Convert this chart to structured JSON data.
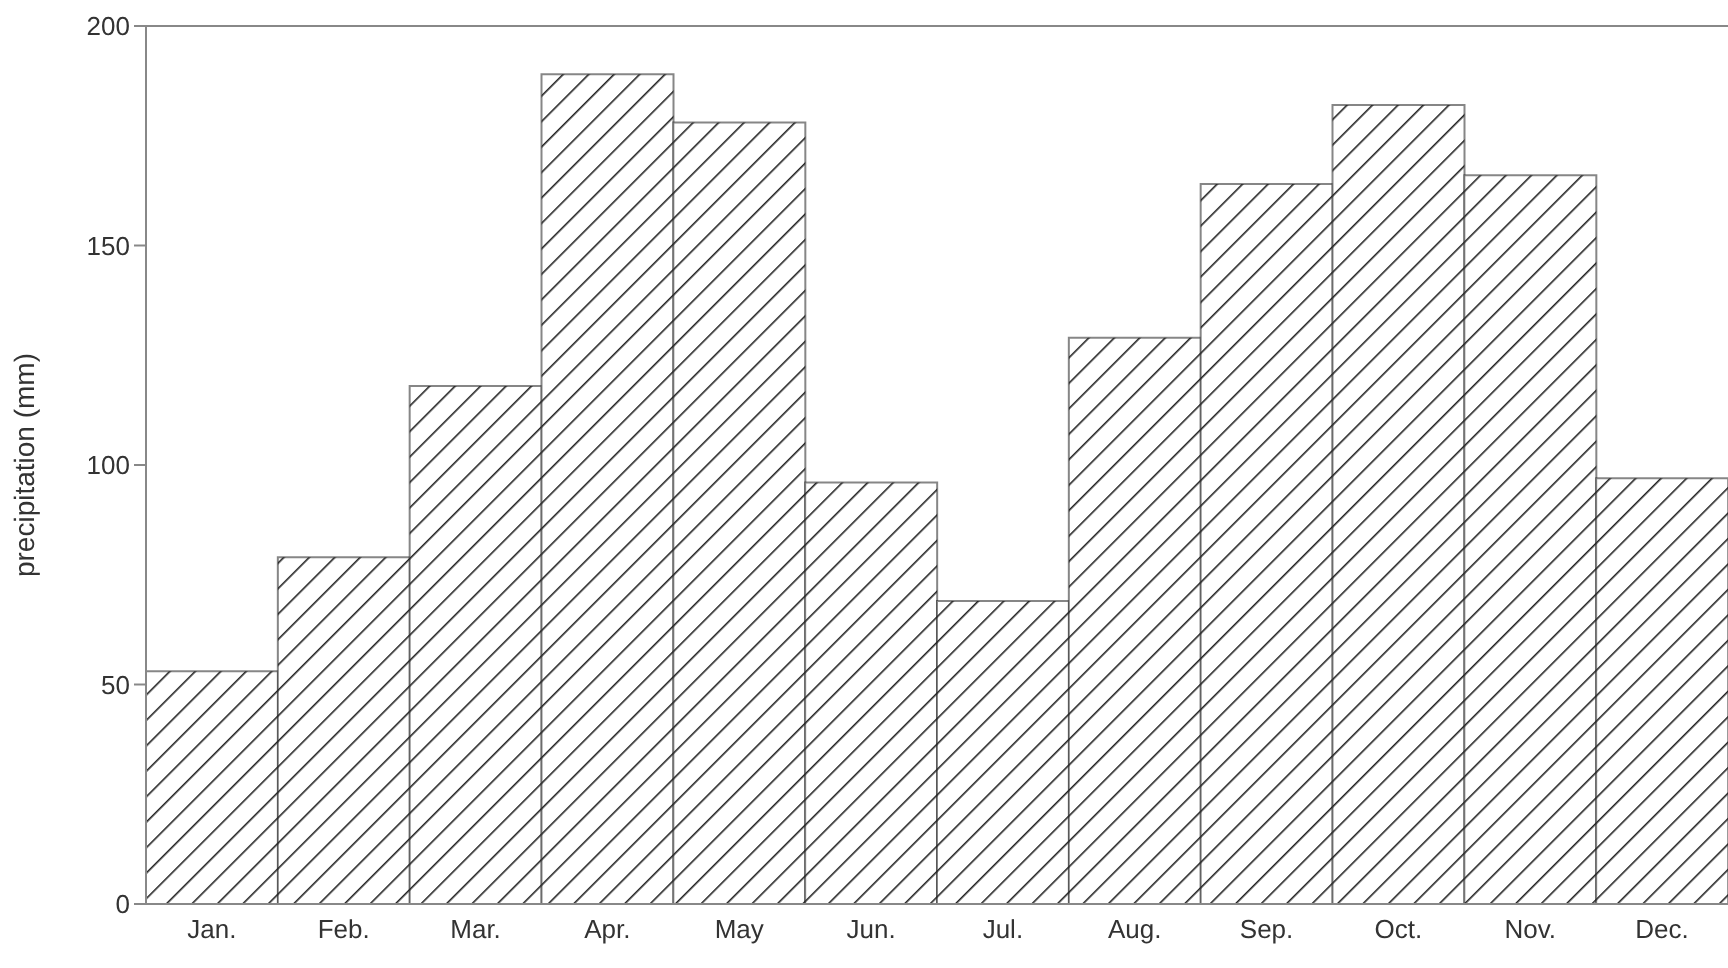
{
  "chart_data": {
    "type": "bar",
    "ylabel": "precipitation (mm)",
    "categories": [
      "Jan.",
      "Feb.",
      "Mar.",
      "Apr.",
      "May",
      "Jun.",
      "Jul.",
      "Aug.",
      "Sep.",
      "Oct.",
      "Nov.",
      "Dec."
    ],
    "values": [
      53,
      79,
      118,
      189,
      178,
      96,
      69,
      129,
      164,
      182,
      166,
      97
    ],
    "color": "#222222",
    "ylim": [
      0,
      200
    ],
    "yticks": [
      0,
      50,
      100,
      150,
      200
    ],
    "grid": false,
    "legend": false
  }
}
